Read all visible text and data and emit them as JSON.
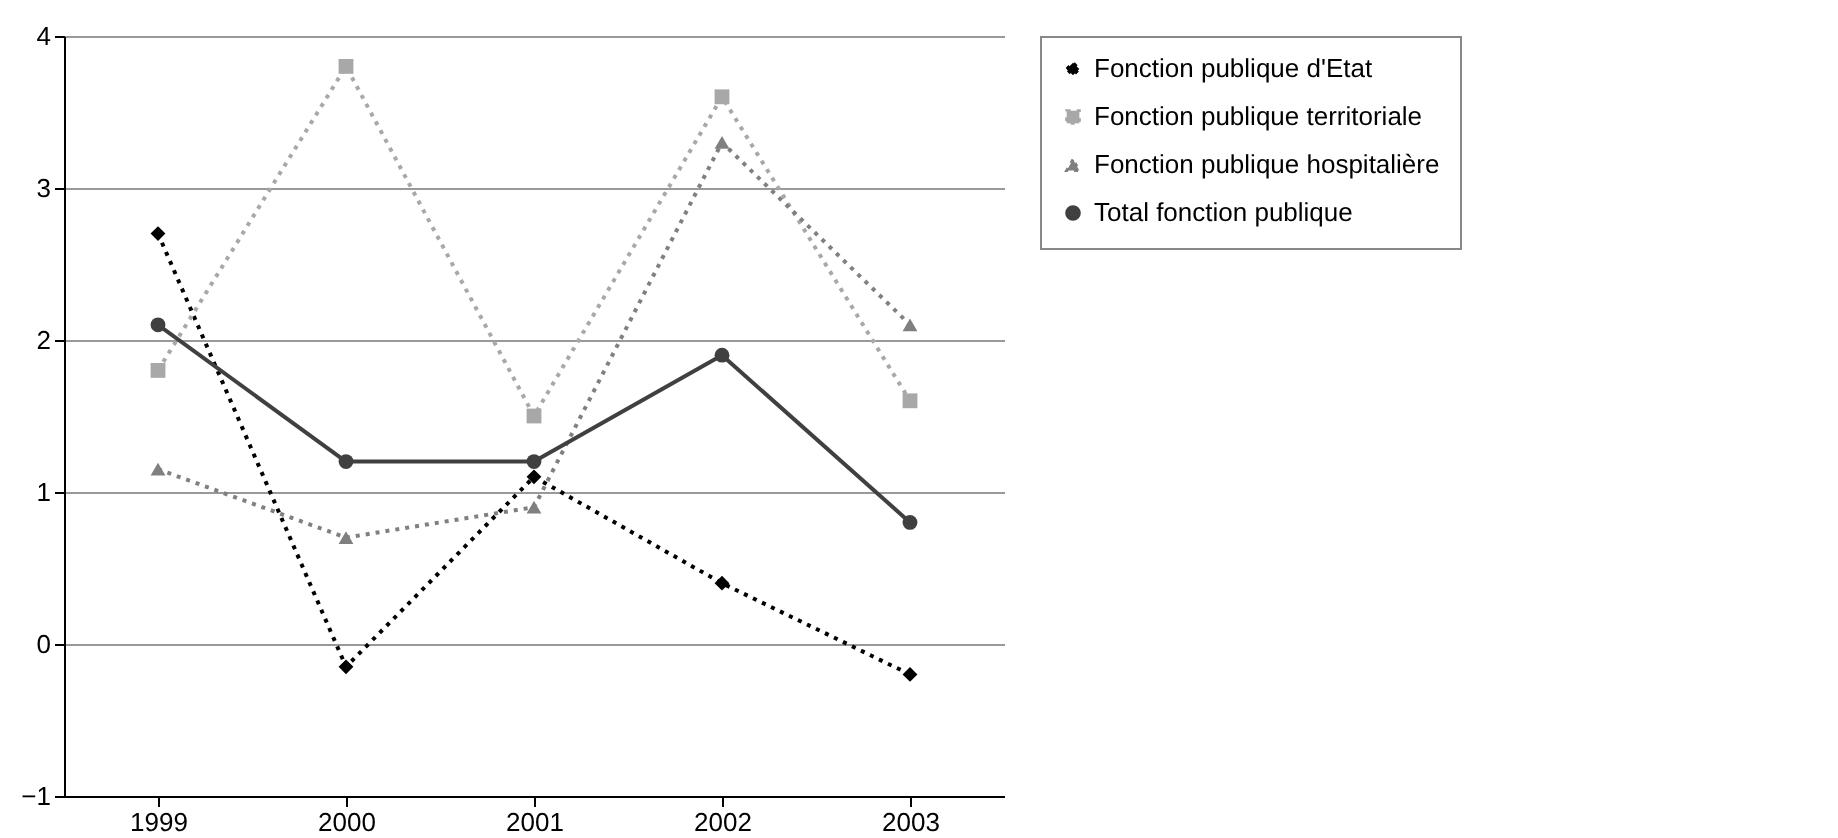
{
  "chart_data": {
    "type": "line",
    "categories": [
      "1999",
      "2000",
      "2001",
      "2002",
      "2003"
    ],
    "series": [
      {
        "name": "Fonction publique d'Etat",
        "color": "#000000",
        "marker": "diamond",
        "line_style": "dotted",
        "values": [
          2.7,
          -0.15,
          1.1,
          0.4,
          -0.2
        ]
      },
      {
        "name": "Fonction publique territoriale",
        "color": "#a8a8a8",
        "marker": "square",
        "line_style": "dotted",
        "values": [
          1.8,
          3.8,
          1.5,
          3.6,
          1.6
        ]
      },
      {
        "name": "Fonction publique hospitalière",
        "color": "#808080",
        "marker": "triangle",
        "line_style": "dotted",
        "values": [
          1.15,
          0.7,
          0.9,
          3.3,
          2.1
        ]
      },
      {
        "name": "Total fonction publique",
        "color": "#404040",
        "marker": "circle",
        "line_style": "solid",
        "values": [
          2.1,
          1.2,
          1.2,
          1.9,
          0.8
        ]
      }
    ],
    "ylim": [
      -1,
      4
    ],
    "yticks": [
      -1,
      0,
      1,
      2,
      3,
      4
    ],
    "grid": "y",
    "legend": "right"
  }
}
